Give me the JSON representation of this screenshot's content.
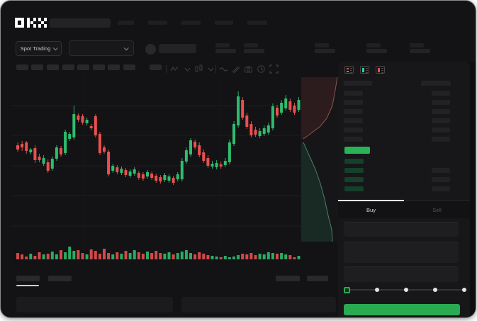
{
  "header": {
    "logo_text": "OKX"
  },
  "trading_bar": {
    "market_selector_label": "Spot Trading"
  },
  "chart_toolbar": {
    "interval_placeholders": 9,
    "icons": [
      "zigzag-indicator",
      "chevron-down",
      "candle-type",
      "chevron-down",
      "wave-overlay",
      "draw-pencil",
      "camera-snapshot",
      "history-clock",
      "fullscreen-expand"
    ]
  },
  "colors": {
    "up": "#2ebd6e",
    "down": "#e9504f",
    "accent_green": "#2bab51",
    "price_highlight": "#27b356",
    "bid_row_green": "#15402a",
    "grid": "#1d1d1f"
  },
  "chart_data": {
    "type": "candlestick",
    "title": "",
    "xlabel": "",
    "ylabel": "",
    "note": "No axis labels visible; values are relative price-index units estimated from pixels (0 = chart low, ~134 = chart high).",
    "price_index_range": [
      0,
      140
    ],
    "candles_format": [
      "high",
      "body_top",
      "body_bottom",
      "low",
      "direction"
    ],
    "candles": [
      [
        62,
        58,
        52,
        49,
        "r"
      ],
      [
        64,
        60,
        55,
        50,
        "r"
      ],
      [
        64,
        62,
        50,
        46,
        "r"
      ],
      [
        54,
        52,
        48,
        45,
        "g"
      ],
      [
        58,
        54,
        37,
        33,
        "r"
      ],
      [
        46,
        42,
        37,
        34,
        "r"
      ],
      [
        44,
        40,
        32,
        29,
        "g"
      ],
      [
        38,
        34,
        22,
        19,
        "r"
      ],
      [
        42,
        39,
        25,
        22,
        "g"
      ],
      [
        58,
        55,
        39,
        36,
        "g"
      ],
      [
        57,
        54,
        45,
        42,
        "r"
      ],
      [
        80,
        77,
        47,
        44,
        "g"
      ],
      [
        77,
        74,
        67,
        64,
        "g"
      ],
      [
        114,
        102,
        69,
        66,
        "g"
      ],
      [
        103,
        100,
        94,
        91,
        "r"
      ],
      [
        102,
        99,
        90,
        87,
        "r"
      ],
      [
        97,
        94,
        89,
        86,
        "g"
      ],
      [
        88,
        85,
        82,
        79,
        "r"
      ],
      [
        102,
        99,
        72,
        69,
        "r"
      ],
      [
        77,
        74,
        47,
        44,
        "r"
      ],
      [
        58,
        55,
        49,
        46,
        "r"
      ],
      [
        52,
        49,
        17,
        14,
        "r"
      ],
      [
        32,
        29,
        22,
        19,
        "g"
      ],
      [
        30,
        27,
        20,
        17,
        "r"
      ],
      [
        28,
        25,
        19,
        16,
        "g"
      ],
      [
        26,
        23,
        16,
        13,
        "r"
      ],
      [
        24,
        21,
        15,
        12,
        "g"
      ],
      [
        27,
        24,
        18,
        15,
        "g"
      ],
      [
        22,
        19,
        12,
        9,
        "r"
      ],
      [
        20,
        17,
        11,
        8,
        "r"
      ],
      [
        23,
        20,
        14,
        11,
        "g"
      ],
      [
        21,
        18,
        12,
        9,
        "r"
      ],
      [
        18,
        15,
        8,
        5,
        "r"
      ],
      [
        16,
        13,
        7,
        4,
        "r"
      ],
      [
        19,
        16,
        9,
        6,
        "g"
      ],
      [
        17,
        14,
        8,
        5,
        "g"
      ],
      [
        15,
        12,
        5,
        2,
        "r"
      ],
      [
        20,
        17,
        10,
        7,
        "g"
      ],
      [
        40,
        36,
        10,
        7,
        "g"
      ],
      [
        55,
        51,
        35,
        32,
        "g"
      ],
      [
        68,
        65,
        45,
        42,
        "g"
      ],
      [
        66,
        63,
        55,
        52,
        "r"
      ],
      [
        62,
        58,
        44,
        41,
        "r"
      ],
      [
        52,
        48,
        36,
        33,
        "r"
      ],
      [
        44,
        40,
        29,
        26,
        "r"
      ],
      [
        36,
        32,
        28,
        25,
        "g"
      ],
      [
        37,
        33,
        27,
        24,
        "g"
      ],
      [
        35,
        31,
        28,
        25,
        "r"
      ],
      [
        40,
        36,
        30,
        27,
        "g"
      ],
      [
        66,
        62,
        34,
        31,
        "g"
      ],
      [
        92,
        88,
        60,
        57,
        "g"
      ],
      [
        134,
        127,
        86,
        83,
        "g"
      ],
      [
        126,
        122,
        97,
        94,
        "r"
      ],
      [
        104,
        100,
        84,
        81,
        "r"
      ],
      [
        92,
        88,
        72,
        69,
        "r"
      ],
      [
        84,
        80,
        73,
        70,
        "r"
      ],
      [
        82,
        78,
        71,
        68,
        "g"
      ],
      [
        86,
        82,
        74,
        71,
        "g"
      ],
      [
        90,
        86,
        76,
        73,
        "g"
      ],
      [
        117,
        113,
        82,
        79,
        "g"
      ],
      [
        115,
        111,
        100,
        97,
        "r"
      ],
      [
        122,
        118,
        104,
        101,
        "g"
      ],
      [
        129,
        124,
        110,
        107,
        "g"
      ],
      [
        124,
        120,
        108,
        105,
        "r"
      ],
      [
        118,
        114,
        104,
        101,
        "r"
      ],
      [
        126,
        122,
        108,
        105,
        "g"
      ]
    ],
    "volume": [
      9,
      7,
      4,
      8,
      5,
      10,
      7,
      8,
      11,
      7,
      13,
      10,
      18,
      12,
      13,
      9,
      7,
      14,
      12,
      8,
      15,
      9,
      7,
      10,
      8,
      12,
      9,
      13,
      10,
      8,
      11,
      9,
      12,
      9,
      8,
      10,
      7,
      9,
      11,
      13,
      9,
      7,
      10,
      8,
      6,
      5,
      4,
      3,
      5,
      3,
      4,
      6,
      8,
      7,
      9,
      6,
      8,
      7,
      10,
      9,
      8,
      9,
      7,
      6,
      3,
      5
    ],
    "grid": {
      "h_lines_y": [
        40,
        82,
        125,
        167,
        210
      ],
      "v_lines_x": [
        104,
        296
      ]
    },
    "depth": {
      "type": "area",
      "orientation": "vertical",
      "asks_line": [
        [
          51,
          0
        ],
        [
          48,
          18
        ],
        [
          44,
          40
        ],
        [
          36,
          58
        ],
        [
          26,
          70
        ],
        [
          10,
          82
        ],
        [
          3,
          87
        ]
      ],
      "bids_line": [
        [
          3,
          92
        ],
        [
          12,
          112
        ],
        [
          20,
          130
        ],
        [
          27,
          150
        ],
        [
          33,
          172
        ],
        [
          38,
          195
        ],
        [
          43,
          215
        ],
        [
          44,
          232
        ]
      ],
      "box": [
        54,
        232
      ]
    }
  },
  "orderbook": {
    "view_icons": [
      "book-all",
      "book-buys",
      "book-sells"
    ],
    "ask_rows": 6,
    "bid_rows": 4,
    "bid_rows_with_amount_bar": [
      false,
      true,
      true,
      true
    ]
  },
  "order_form": {
    "tabs": [
      {
        "label": "Buy",
        "active": true
      },
      {
        "label": "Sell",
        "active": false
      }
    ],
    "field_count": 3,
    "slider": {
      "stops": [
        0,
        25,
        50,
        75,
        100
      ],
      "selected_index": 0
    }
  }
}
